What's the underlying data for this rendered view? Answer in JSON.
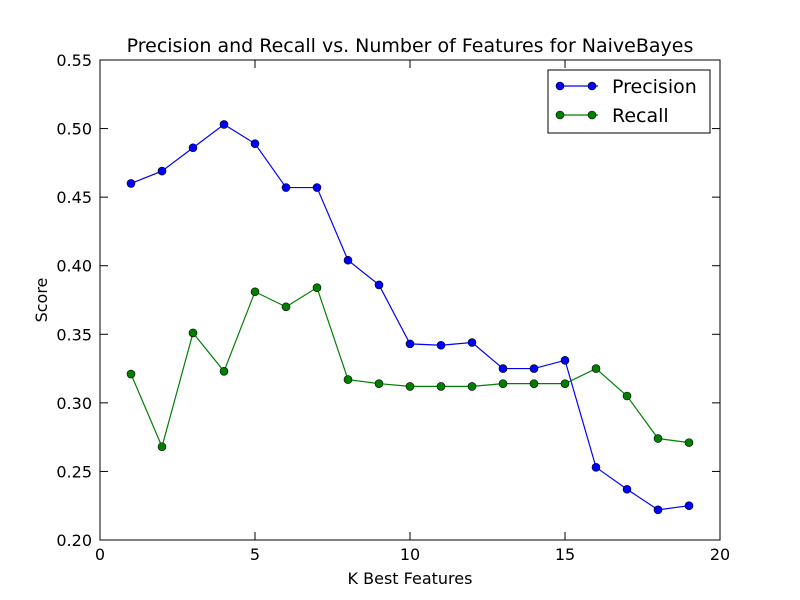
{
  "chart_data": {
    "type": "line",
    "title": "Precision and Recall vs. Number of Features for NaiveBayes",
    "xlabel": "K Best Features",
    "ylabel": "Score",
    "xlim": [
      0,
      20
    ],
    "ylim": [
      0.2,
      0.55
    ],
    "xticks": [
      "0",
      "5",
      "10",
      "15",
      "20"
    ],
    "yticks": [
      "0.20",
      "0.25",
      "0.30",
      "0.35",
      "0.40",
      "0.45",
      "0.50",
      "0.55"
    ],
    "grid": false,
    "legend_position": "top-right",
    "x": [
      1,
      2,
      3,
      4,
      5,
      6,
      7,
      8,
      9,
      10,
      11,
      12,
      13,
      14,
      15,
      16,
      17,
      18,
      19
    ],
    "series": [
      {
        "name": "Precision",
        "color": "#0000ff",
        "values": [
          0.46,
          0.469,
          0.486,
          0.503,
          0.489,
          0.457,
          0.457,
          0.404,
          0.386,
          0.343,
          0.342,
          0.344,
          0.325,
          0.325,
          0.331,
          0.253,
          0.237,
          0.222,
          0.225
        ]
      },
      {
        "name": "Recall",
        "color": "#008000",
        "values": [
          0.321,
          0.268,
          0.351,
          0.323,
          0.381,
          0.37,
          0.384,
          0.317,
          0.314,
          0.312,
          0.312,
          0.312,
          0.314,
          0.314,
          0.314,
          0.325,
          0.305,
          0.274,
          0.271
        ]
      }
    ]
  }
}
